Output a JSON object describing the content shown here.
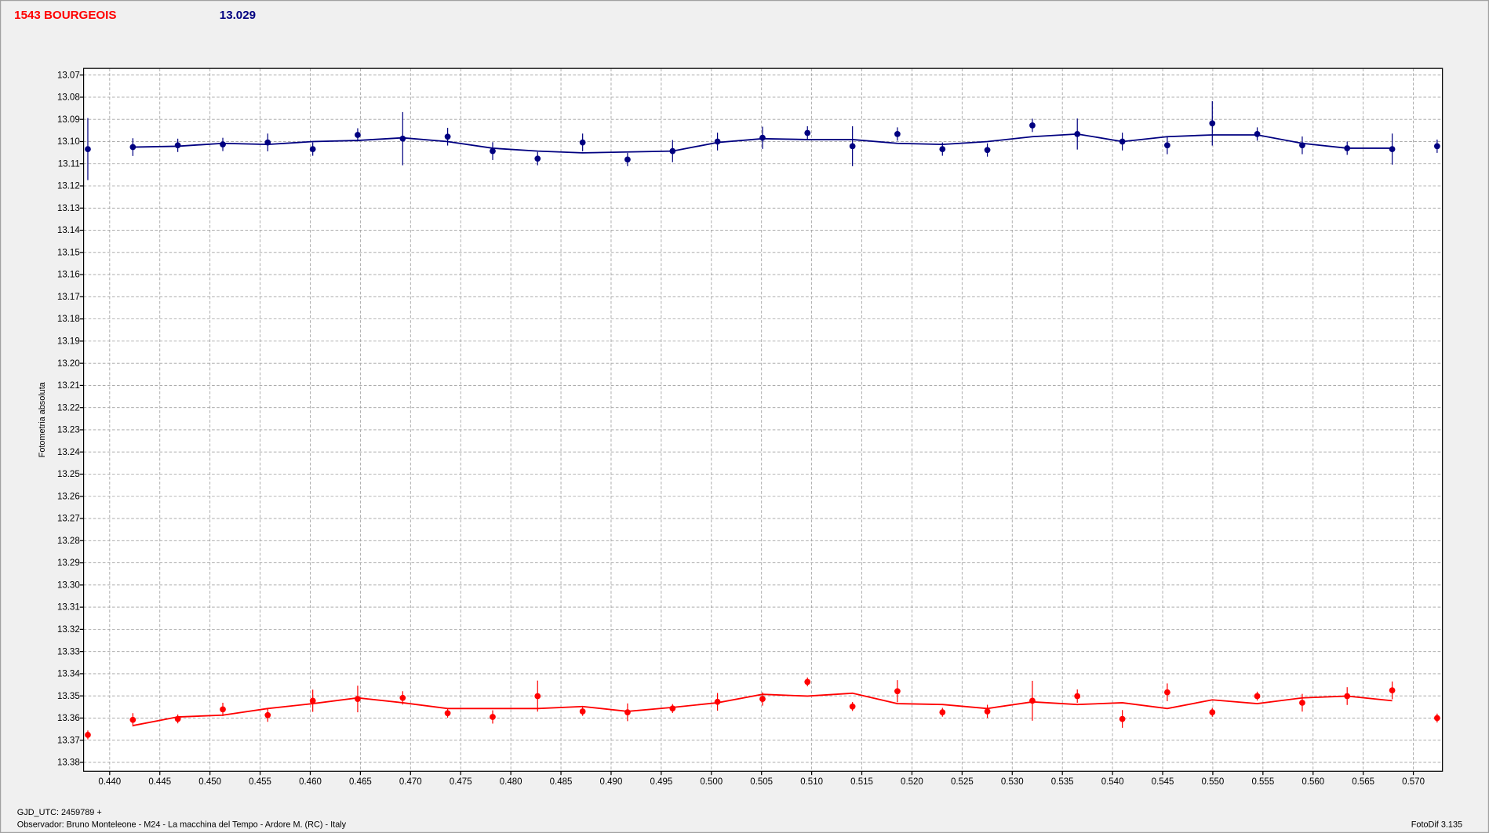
{
  "chart_data": {
    "type": "scatter",
    "title": "1543 BOURGEOIS",
    "subtitle": "13.029",
    "ylabel": "Fotometria absoluta",
    "xlabel": "GJD_UTC: 2459789 +",
    "footer": "Observador: Bruno Monteleone - M24 - La macchina del Tempo - Ardore M. (RC) - Italy",
    "version": "FotoDif 3.135",
    "xlim": [
      0.4374,
      0.5729
    ],
    "ylim": [
      13.067,
      13.384
    ],
    "y_inverted": true,
    "grid": true,
    "xticks": [
      {
        "value": 0.44,
        "label": "0.440"
      },
      {
        "value": 0.445,
        "label": "0.445"
      },
      {
        "value": 0.45,
        "label": "0.450"
      },
      {
        "value": 0.455,
        "label": "0.455"
      },
      {
        "value": 0.46,
        "label": "0.460"
      },
      {
        "value": 0.465,
        "label": "0.465"
      },
      {
        "value": 0.47,
        "label": "0.470"
      },
      {
        "value": 0.475,
        "label": "0.475"
      },
      {
        "value": 0.48,
        "label": "0.480"
      },
      {
        "value": 0.485,
        "label": "0.485"
      },
      {
        "value": 0.49,
        "label": "0.490"
      },
      {
        "value": 0.495,
        "label": "0.495"
      },
      {
        "value": 0.5,
        "label": "0.500"
      },
      {
        "value": 0.505,
        "label": "0.505"
      },
      {
        "value": 0.51,
        "label": "0.510"
      },
      {
        "value": 0.515,
        "label": "0.515"
      },
      {
        "value": 0.52,
        "label": "0.520"
      },
      {
        "value": 0.525,
        "label": "0.525"
      },
      {
        "value": 0.53,
        "label": "0.530"
      },
      {
        "value": 0.535,
        "label": "0.535"
      },
      {
        "value": 0.54,
        "label": "0.540"
      },
      {
        "value": 0.545,
        "label": "0.545"
      },
      {
        "value": 0.55,
        "label": "0.550"
      },
      {
        "value": 0.555,
        "label": "0.555"
      },
      {
        "value": 0.56,
        "label": "0.560"
      },
      {
        "value": 0.565,
        "label": "0.565"
      },
      {
        "value": 0.57,
        "label": "0.570"
      }
    ],
    "yticks": [
      13.07,
      13.08,
      13.09,
      {
        "value": 13.1,
        "label": "13.10"
      },
      13.11,
      13.12,
      13.13,
      13.14,
      13.15,
      13.16,
      13.17,
      13.18,
      13.19,
      {
        "value": 13.2,
        "label": "13.20"
      },
      13.21,
      13.22,
      13.23,
      13.24,
      13.25,
      13.26,
      13.27,
      13.28,
      13.29,
      {
        "value": 13.3,
        "label": "13.30"
      },
      13.31,
      13.32,
      13.33,
      13.34,
      13.35,
      13.36,
      13.37,
      13.38
    ],
    "x": [
      0.43782,
      0.44231,
      0.44679,
      0.45128,
      0.45576,
      0.46025,
      0.46473,
      0.46922,
      0.4737,
      0.47819,
      0.48267,
      0.48716,
      0.49164,
      0.49613,
      0.50061,
      0.5051,
      0.50958,
      0.51407,
      0.51855,
      0.52304,
      0.52752,
      0.53201,
      0.53649,
      0.54098,
      0.54546,
      0.54995,
      0.55443,
      0.55892,
      0.5634,
      0.56789,
      0.57237
    ],
    "series": [
      {
        "color": "#000080",
        "values": [
          13.1034,
          13.1025,
          13.1017,
          13.1013,
          13.1004,
          13.1034,
          13.097,
          13.0987,
          13.0978,
          13.1043,
          13.1077,
          13.1004,
          13.1081,
          13.1043,
          13.1,
          13.0983,
          13.0961,
          13.1021,
          13.0966,
          13.1034,
          13.1038,
          13.0927,
          13.0966,
          13.1,
          13.1017,
          13.0918,
          13.0966,
          13.1017,
          13.103,
          13.1034,
          13.1021
        ],
        "errors": [
          0.014,
          0.004,
          0.003,
          0.003,
          0.004,
          0.003,
          0.003,
          0.012,
          0.004,
          0.004,
          0.003,
          0.004,
          0.003,
          0.005,
          0.004,
          0.005,
          0.003,
          0.009,
          0.003,
          0.003,
          0.003,
          0.003,
          0.007,
          0.004,
          0.004,
          0.01,
          0.003,
          0.004,
          0.003,
          0.007,
          0.003
        ]
      },
      {
        "color": "#ff0000",
        "values": [
          13.3676,
          13.3608,
          13.3604,
          13.3561,
          13.3587,
          13.3522,
          13.3514,
          13.3509,
          13.3578,
          13.3595,
          13.3501,
          13.357,
          13.3574,
          13.3557,
          13.3527,
          13.3514,
          13.3437,
          13.3548,
          13.3479,
          13.3574,
          13.357,
          13.3522,
          13.3501,
          13.3604,
          13.3484,
          13.3574,
          13.3501,
          13.3531,
          13.3501,
          13.3475,
          13.36
        ],
        "errors": [
          0.002,
          0.003,
          0.002,
          0.003,
          0.003,
          0.005,
          0.006,
          0.003,
          0.002,
          0.003,
          0.007,
          0.002,
          0.004,
          0.002,
          0.004,
          0.003,
          0.002,
          0.002,
          0.005,
          0.002,
          0.003,
          0.009,
          0.003,
          0.004,
          0.004,
          0.002,
          0.002,
          0.004,
          0.004,
          0.004,
          0.002
        ]
      }
    ],
    "lines": [
      {
        "color": "#000080",
        "x": [
          0.44231,
          0.44679,
          0.45128,
          0.45576,
          0.46025,
          0.46473,
          0.46922,
          0.4737,
          0.47819,
          0.48267,
          0.48716,
          0.49164,
          0.49613,
          0.50061,
          0.5051,
          0.50958,
          0.51407,
          0.51855,
          0.52304,
          0.52752,
          0.53201,
          0.53649,
          0.54098,
          0.54546,
          0.54995,
          0.55443,
          0.55892,
          0.5634,
          0.56789
        ],
        "values": [
          13.1025,
          13.1021,
          13.1008,
          13.1013,
          13.1,
          13.0995,
          13.0983,
          13.1,
          13.103,
          13.1043,
          13.1051,
          13.1047,
          13.1043,
          13.1004,
          13.0987,
          13.0991,
          13.0991,
          13.1008,
          13.1013,
          13.1,
          13.0978,
          13.0966,
          13.1,
          13.0978,
          13.097,
          13.097,
          13.1008,
          13.103,
          13.103
        ]
      },
      {
        "color": "#ff0000",
        "x": [
          0.44231,
          0.44679,
          0.45128,
          0.45576,
          0.46025,
          0.46473,
          0.46922,
          0.4737,
          0.47819,
          0.48267,
          0.48716,
          0.49164,
          0.49613,
          0.50061,
          0.5051,
          0.50958,
          0.51407,
          0.51855,
          0.52304,
          0.52752,
          0.53201,
          0.53649,
          0.54098,
          0.54546,
          0.54995,
          0.55443,
          0.55892,
          0.5634,
          0.56789
        ],
        "values": [
          13.3634,
          13.3595,
          13.3587,
          13.3557,
          13.3535,
          13.3509,
          13.3531,
          13.3557,
          13.3557,
          13.3557,
          13.3548,
          13.357,
          13.3552,
          13.3531,
          13.3493,
          13.3501,
          13.3488,
          13.3535,
          13.3539,
          13.3557,
          13.3527,
          13.3539,
          13.3531,
          13.3557,
          13.3518,
          13.3535,
          13.3509,
          13.3501,
          13.3522
        ]
      }
    ]
  }
}
